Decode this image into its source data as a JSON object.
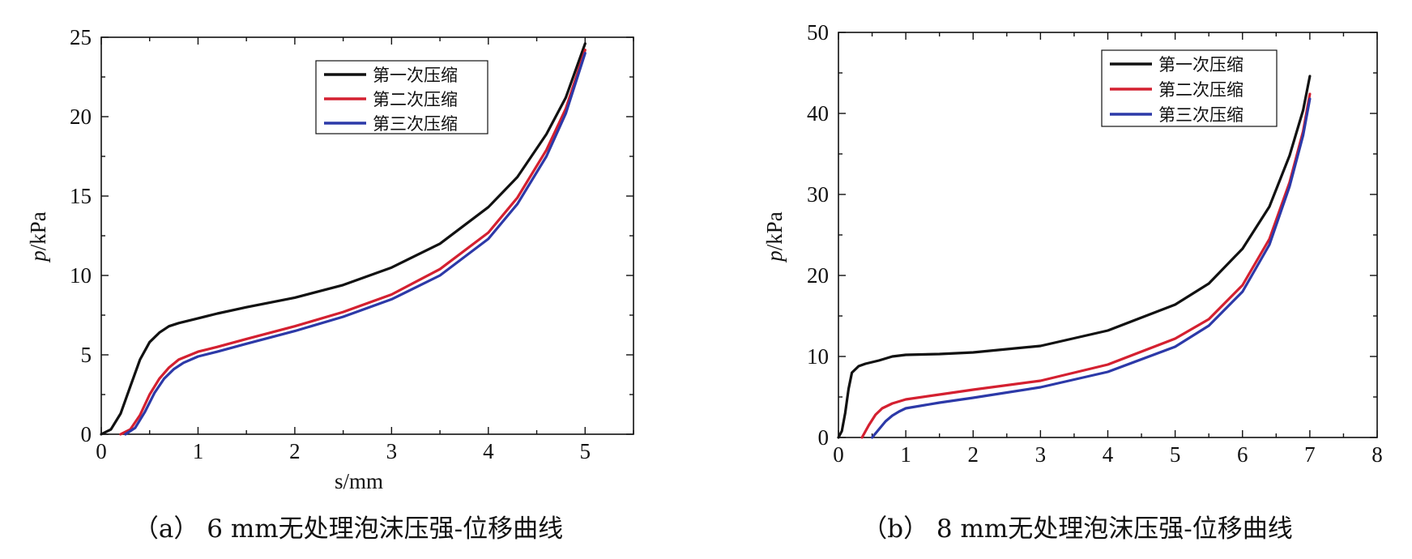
{
  "chart_data": [
    {
      "type": "line",
      "caption": "（a） 6 mm无处理泡沫压强-位移曲线",
      "xlabel": "s/mm",
      "ylabel_italic": "p",
      "ylabel_rest": "/kPa",
      "xlim": [
        0,
        5.5
      ],
      "ylim": [
        0,
        25
      ],
      "xticks": [
        0,
        1,
        2,
        3,
        4,
        5
      ],
      "yticks": [
        0,
        5,
        10,
        15,
        20,
        25
      ],
      "grid": false,
      "legend_position": "top-right",
      "series": [
        {
          "name": "第一次压缩",
          "color": "#111111",
          "x": [
            0,
            0.1,
            0.2,
            0.3,
            0.4,
            0.5,
            0.6,
            0.7,
            0.8,
            1.0,
            1.2,
            1.5,
            2.0,
            2.5,
            3.0,
            3.5,
            4.0,
            4.3,
            4.6,
            4.8,
            5.0
          ],
          "y": [
            0,
            0.3,
            1.3,
            3.0,
            4.7,
            5.8,
            6.4,
            6.8,
            7.0,
            7.3,
            7.6,
            8.0,
            8.6,
            9.4,
            10.5,
            12.0,
            14.3,
            16.2,
            18.9,
            21.2,
            24.6
          ]
        },
        {
          "name": "第二次压缩",
          "color": "#d42030",
          "x": [
            0.2,
            0.3,
            0.4,
            0.5,
            0.6,
            0.7,
            0.8,
            1.0,
            1.2,
            1.5,
            2.0,
            2.5,
            3.0,
            3.5,
            4.0,
            4.3,
            4.6,
            4.8,
            5.0
          ],
          "y": [
            0,
            0.3,
            1.2,
            2.5,
            3.5,
            4.2,
            4.7,
            5.2,
            5.5,
            6.0,
            6.8,
            7.7,
            8.8,
            10.4,
            12.7,
            14.9,
            17.9,
            20.5,
            24.2
          ]
        },
        {
          "name": "第三次压缩",
          "color": "#2c39a8",
          "x": [
            0.25,
            0.35,
            0.45,
            0.55,
            0.65,
            0.75,
            0.85,
            1.0,
            1.2,
            1.5,
            2.0,
            2.5,
            3.0,
            3.5,
            4.0,
            4.3,
            4.6,
            4.8,
            5.0
          ],
          "y": [
            0,
            0.4,
            1.4,
            2.6,
            3.5,
            4.1,
            4.5,
            4.9,
            5.2,
            5.7,
            6.5,
            7.4,
            8.5,
            10.0,
            12.3,
            14.5,
            17.5,
            20.2,
            24.0
          ]
        }
      ]
    },
    {
      "type": "line",
      "caption": "（b） 8 mm无处理泡沫压强-位移曲线",
      "xlabel": "",
      "ylabel_italic": "p",
      "ylabel_rest": "/kPa",
      "xlim": [
        0,
        8
      ],
      "ylim": [
        0,
        50
      ],
      "xticks": [
        0,
        1,
        2,
        3,
        4,
        5,
        6,
        7,
        8
      ],
      "yticks": [
        0,
        10,
        20,
        30,
        40,
        50
      ],
      "grid": false,
      "legend_position": "top-right",
      "series": [
        {
          "name": "第一次压缩",
          "color": "#111111",
          "x": [
            0,
            0.05,
            0.1,
            0.15,
            0.2,
            0.3,
            0.4,
            0.6,
            0.8,
            1.0,
            1.5,
            2.0,
            3.0,
            4.0,
            5.0,
            5.5,
            6.0,
            6.4,
            6.7,
            6.9,
            7.0
          ],
          "y": [
            0,
            0.8,
            3.0,
            6.0,
            8.0,
            8.8,
            9.1,
            9.5,
            10.0,
            10.2,
            10.3,
            10.5,
            11.3,
            13.2,
            16.4,
            19.0,
            23.3,
            28.5,
            34.8,
            40.4,
            44.6
          ]
        },
        {
          "name": "第二次压缩",
          "color": "#d42030",
          "x": [
            0.35,
            0.45,
            0.55,
            0.65,
            0.8,
            1.0,
            1.5,
            2.0,
            3.0,
            4.0,
            5.0,
            5.5,
            6.0,
            6.4,
            6.7,
            6.9,
            7.0
          ],
          "y": [
            0,
            1.5,
            2.8,
            3.6,
            4.2,
            4.7,
            5.3,
            5.9,
            7.0,
            9.0,
            12.2,
            14.6,
            18.8,
            24.5,
            31.5,
            37.8,
            42.4
          ]
        },
        {
          "name": "第三次压缩",
          "color": "#2c39a8",
          "x": [
            0.5,
            0.6,
            0.7,
            0.8,
            0.9,
            1.0,
            1.5,
            2.0,
            3.0,
            4.0,
            5.0,
            5.5,
            6.0,
            6.4,
            6.7,
            6.9,
            7.0
          ],
          "y": [
            0,
            1.0,
            2.0,
            2.7,
            3.2,
            3.6,
            4.3,
            4.9,
            6.2,
            8.1,
            11.2,
            13.8,
            18.0,
            23.8,
            31.0,
            37.3,
            41.8
          ]
        }
      ]
    }
  ]
}
